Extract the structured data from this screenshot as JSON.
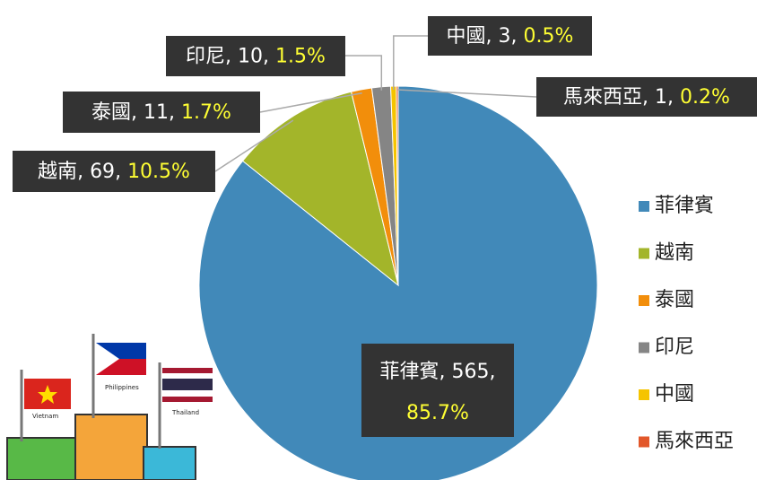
{
  "chart_data": {
    "type": "pie",
    "categories": [
      "菲律賓",
      "越南",
      "泰國",
      "印尼",
      "中國",
      "馬來西亞"
    ],
    "values": [
      565,
      69,
      11,
      10,
      3,
      1
    ],
    "percent_labels": [
      "85.7%",
      "10.5%",
      "1.7%",
      "1.5%",
      "0.5%",
      "0.2%"
    ],
    "colors": [
      "#4189b9",
      "#a3b52a",
      "#f28e0b",
      "#858585",
      "#f5c400",
      "#e2572a"
    ],
    "legend": "right"
  },
  "illustration": {
    "flags": [
      "Vietnam",
      "Philippines",
      "Thailand"
    ]
  }
}
